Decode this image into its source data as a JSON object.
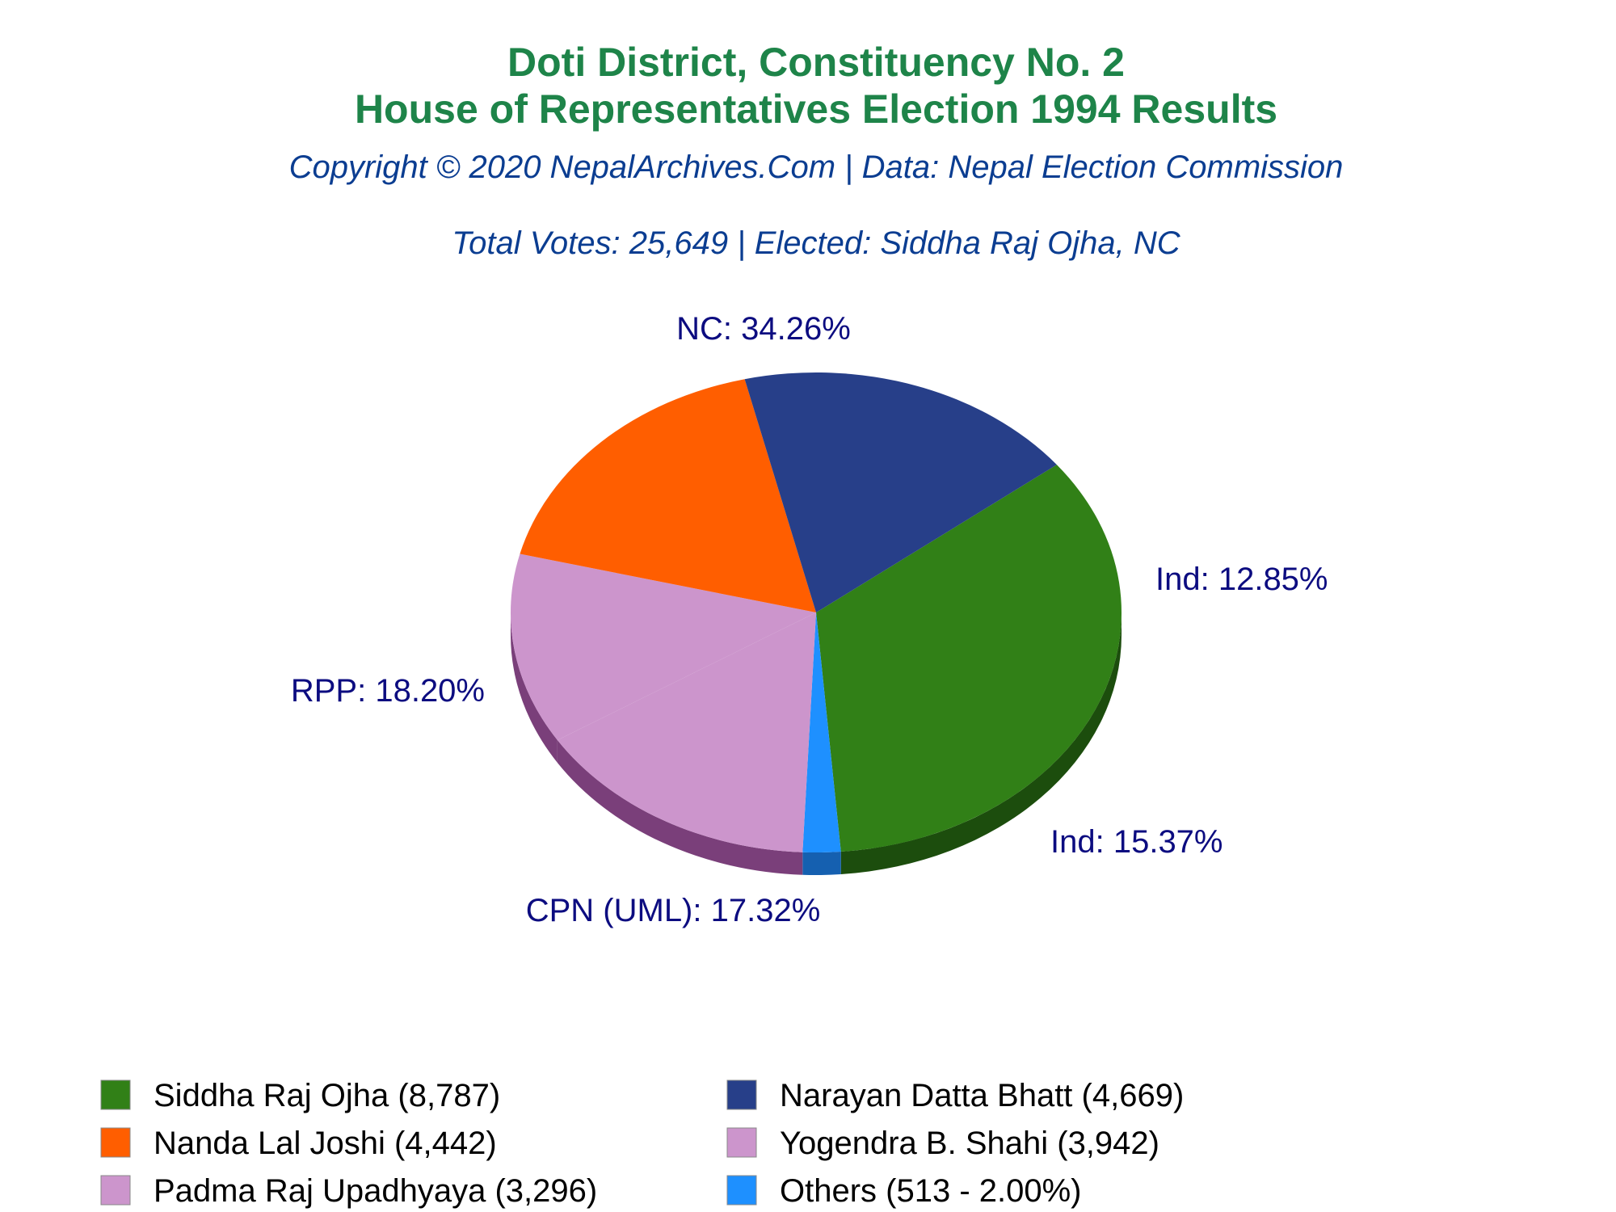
{
  "chart_data": {
    "type": "pie",
    "title": "Doti District, Constituency No. 2",
    "title_line2": "House of Representatives Election 1994 Results",
    "subtitle": "Copyright © 2020 NepalArchives.Com | Data: Nepal Election Commission",
    "summary": "Total Votes: 25,649 | Elected: Siddha Raj Ojha, NC",
    "slices": [
      {
        "label": "NC: 34.26%",
        "value": 34.26,
        "color": "#318017",
        "side": "#1c4d0d"
      },
      {
        "label": "",
        "value": 2.0,
        "color": "#1e90ff",
        "side": "#1560b0"
      },
      {
        "label": "Ind: 15.37%",
        "value": 15.37,
        "color": "#cc95cc",
        "side": "#7a3f7a"
      },
      {
        "label": "Ind: 12.85%",
        "value": 12.85,
        "color": "#cc95cc",
        "side": "#7a3f7a"
      },
      {
        "label": "CPN (UML): 17.32%",
        "value": 17.32,
        "color": "#ff5e00",
        "side": "#aa0000"
      },
      {
        "label": "RPP: 18.20%",
        "value": 18.2,
        "color": "#273f89",
        "side": "#0b0b38"
      }
    ],
    "legend": [
      {
        "text": "Siddha Raj Ojha (8,787)",
        "color": "#318017"
      },
      {
        "text": "Narayan Datta Bhatt (4,669)",
        "color": "#273f89"
      },
      {
        "text": "Nanda Lal Joshi (4,442)",
        "color": "#ff5e00"
      },
      {
        "text": "Yogendra B. Shahi (3,942)",
        "color": "#cc95cc"
      },
      {
        "text": "Padma Raj Upadhyaya (3,296)",
        "color": "#cc95cc"
      },
      {
        "text": "Others (513 - 2.00%)",
        "color": "#1e90ff"
      }
    ],
    "legend_position": "bottom"
  }
}
